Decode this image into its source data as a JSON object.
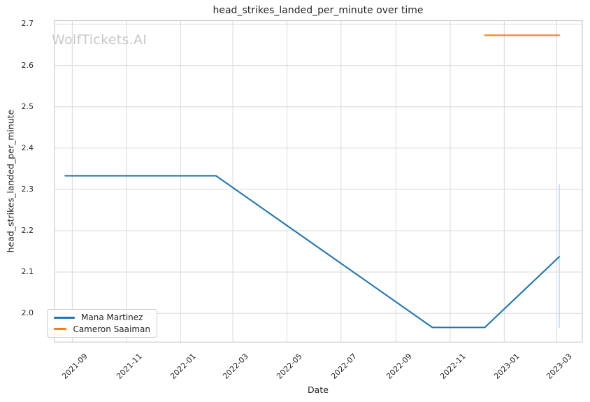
{
  "watermark": "WolfTickets.AI",
  "chart_data": {
    "type": "line",
    "title": "head_strikes_landed_per_minute over time",
    "xlabel": "Date",
    "ylabel": "head_strikes_landed_per_minute",
    "grid": true,
    "legend_position": "lower left",
    "x_tick_labels": [
      "2021-09",
      "2021-11",
      "2022-01",
      "2022-03",
      "2022-05",
      "2022-07",
      "2022-09",
      "2022-11",
      "2023-01",
      "2023-03"
    ],
    "y_ticks": [
      "2.0",
      "2.1",
      "2.2",
      "2.3",
      "2.4",
      "2.5",
      "2.6",
      "2.7"
    ],
    "xlim": [
      "2021-08-12",
      "2023-03-30"
    ],
    "ylim": [
      1.9306,
      2.7084
    ],
    "series": [
      {
        "name": "Mana Martinez",
        "color": "#1f77b4",
        "x": [
          "2021-08-24",
          "2022-02-10",
          "2022-10-12",
          "2022-12-10",
          "2023-03-04"
        ],
        "y": [
          2.333,
          2.333,
          1.966,
          1.966,
          2.137
        ]
      },
      {
        "name": "Cameron Saaiman",
        "color": "#ff7f0e",
        "x": [
          "2022-12-10",
          "2023-03-04"
        ],
        "y": [
          2.673,
          2.673
        ]
      }
    ],
    "error_bar": {
      "x": "2023-03-04",
      "y_low": 1.965,
      "y_high": 2.313,
      "color": "#c6d8ea"
    }
  },
  "colors": {
    "grid": "#d9d9d9",
    "spine": "#cccccc",
    "text": "#262626",
    "watermark": "#c9c9c9"
  }
}
